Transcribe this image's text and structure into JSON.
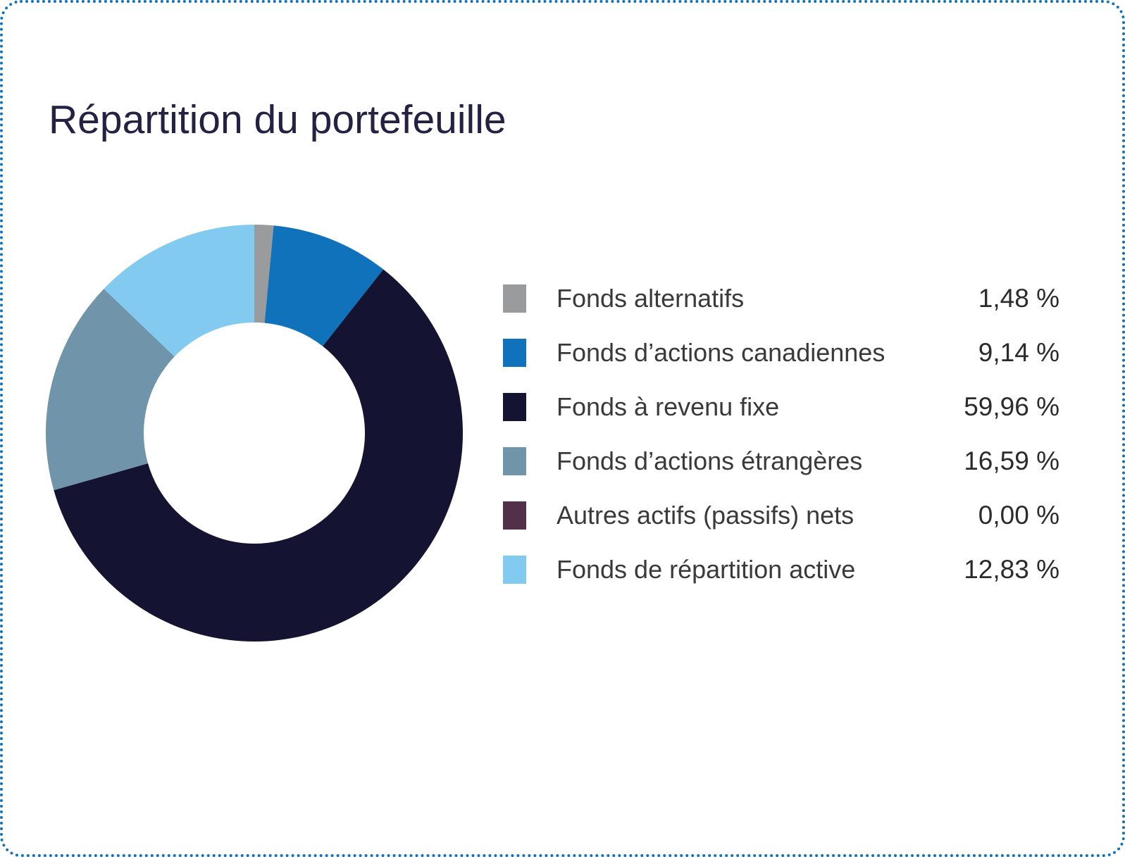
{
  "title": "Répartition du portefeuille",
  "chart_data": {
    "type": "pie",
    "variant": "donut",
    "title": "Répartition du portefeuille",
    "start_angle_deg": 0,
    "direction": "clockwise",
    "inner_radius_ratio": 0.53,
    "legend_position": "right",
    "value_format": "fr-CA percent, comma decimal, space before %",
    "series": [
      {
        "name": "Fonds alternatifs",
        "value": 1.48,
        "display": "1,48 %",
        "color": "#999B9D"
      },
      {
        "name": "Fonds d’actions canadiennes",
        "value": 9.14,
        "display": "9,14 %",
        "color": "#0F72BA"
      },
      {
        "name": "Fonds à revenu fixe",
        "value": 59.96,
        "display": "59,96 %",
        "color": "#141432"
      },
      {
        "name": "Fonds d’actions étrangères",
        "value": 16.59,
        "display": "16,59 %",
        "color": "#7094AA"
      },
      {
        "name": "Autres actifs (passifs) nets",
        "value": 0.0,
        "display": "0,00 %",
        "color": "#533049"
      },
      {
        "name": "Fonds de répartition active",
        "value": 12.83,
        "display": "12,83 %",
        "color": "#82CAF0"
      }
    ]
  },
  "colors": {
    "border": "#1172B8",
    "title_text": "#232144",
    "label_text": "#3A3A3A",
    "value_text": "#2B2B2B",
    "background": "#FFFFFF"
  }
}
